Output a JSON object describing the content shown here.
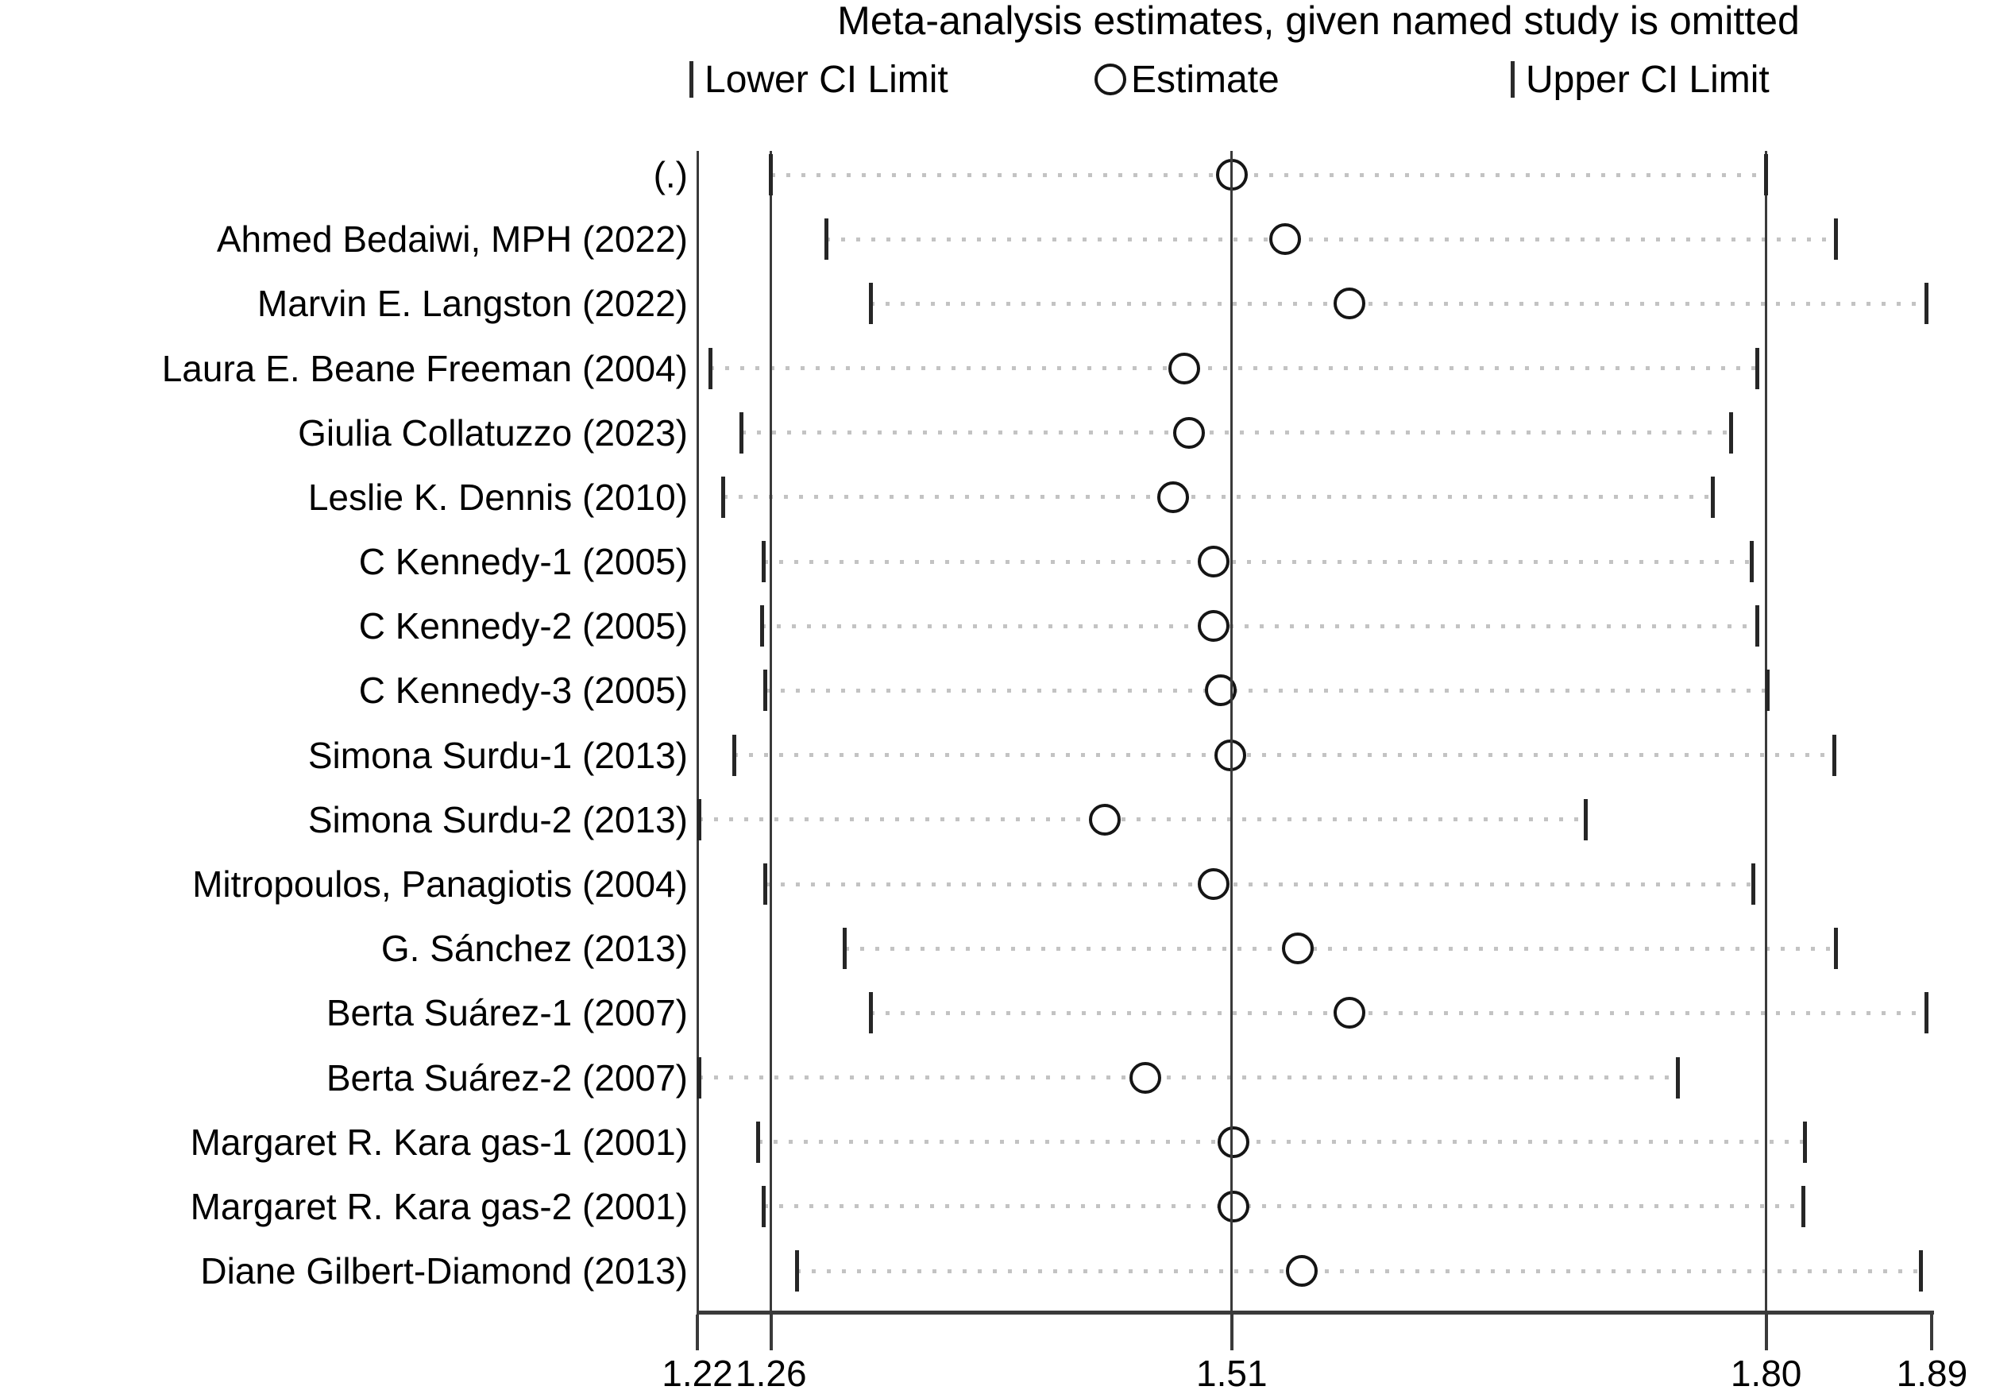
{
  "legend": {
    "lower_label": "Lower CI Limit",
    "estimate_label": "Estimate",
    "upper_label": "Upper CI Limit"
  },
  "colors": {
    "background": "#ffffff",
    "text": "#000000",
    "ref_line": "#3a3a3a",
    "ci_tick": "#262626",
    "dotted_line": "#c3c3c3",
    "circle_stroke": "#151515",
    "circle_fill": "#ffffff"
  },
  "chart_data": {
    "type": "scatter",
    "variant": "meta-analysis leave-one-out sensitivity plot",
    "title": "Meta-analysis estimates, given named study is omitted",
    "xlabel": "",
    "ylabel": "",
    "xlim": [
      1.22,
      1.89
    ],
    "xticks": [
      "1.22",
      "1.26",
      "1.51",
      "1.80",
      "1.89"
    ],
    "ref_lines": [
      1.26,
      1.51,
      1.8
    ],
    "grid": "off",
    "legend_position": "top",
    "overall": {
      "lower": 1.26,
      "estimate": 1.51,
      "upper": 1.8
    },
    "studies": [
      {
        "label": "(.)",
        "lower": 1.26,
        "estimate": 1.51,
        "upper": 1.8
      },
      {
        "label": "Ahmed Bedaiwi, MPH (2022)",
        "lower": 1.29,
        "estimate": 1.539,
        "upper": 1.838
      },
      {
        "label": "Marvin E. Langston (2022)",
        "lower": 1.314,
        "estimate": 1.574,
        "upper": 1.887
      },
      {
        "label": "Laura E. Beane Freeman (2004)",
        "lower": 1.227,
        "estimate": 1.484,
        "upper": 1.795
      },
      {
        "label": "Giulia Collatuzzo (2023)",
        "lower": 1.244,
        "estimate": 1.487,
        "upper": 1.781
      },
      {
        "label": "Leslie K. Dennis (2010)",
        "lower": 1.234,
        "estimate": 1.478,
        "upper": 1.771
      },
      {
        "label": "C Kennedy-1 (2005)",
        "lower": 1.256,
        "estimate": 1.5,
        "upper": 1.792
      },
      {
        "label": "C Kennedy-2 (2005)",
        "lower": 1.255,
        "estimate": 1.5,
        "upper": 1.795
      },
      {
        "label": "C Kennedy-3 (2005)",
        "lower": 1.257,
        "estimate": 1.504,
        "upper": 1.801
      },
      {
        "label": "Simona Surdu-1 (2013)",
        "lower": 1.24,
        "estimate": 1.509,
        "upper": 1.837
      },
      {
        "label": "Simona Surdu-2 (2013)",
        "lower": 1.221,
        "estimate": 1.441,
        "upper": 1.702
      },
      {
        "label": "Mitropoulos, Panagiotis (2004)",
        "lower": 1.257,
        "estimate": 1.5,
        "upper": 1.793
      },
      {
        "label": "G. Sánchez (2013)",
        "lower": 1.3,
        "estimate": 1.546,
        "upper": 1.838
      },
      {
        "label": "Berta Suárez-1 (2007)",
        "lower": 1.314,
        "estimate": 1.574,
        "upper": 1.887
      },
      {
        "label": "Berta Suárez-2 (2007)",
        "lower": 1.221,
        "estimate": 1.463,
        "upper": 1.752
      },
      {
        "label": "Margaret R. Kara gas-1 (2001)",
        "lower": 1.253,
        "estimate": 1.511,
        "upper": 1.821
      },
      {
        "label": "Margaret R. Kara gas-2 (2001)",
        "lower": 1.256,
        "estimate": 1.511,
        "upper": 1.82
      },
      {
        "label": "Diane Gilbert-Diamond (2013)",
        "lower": 1.274,
        "estimate": 1.548,
        "upper": 1.884
      }
    ]
  }
}
